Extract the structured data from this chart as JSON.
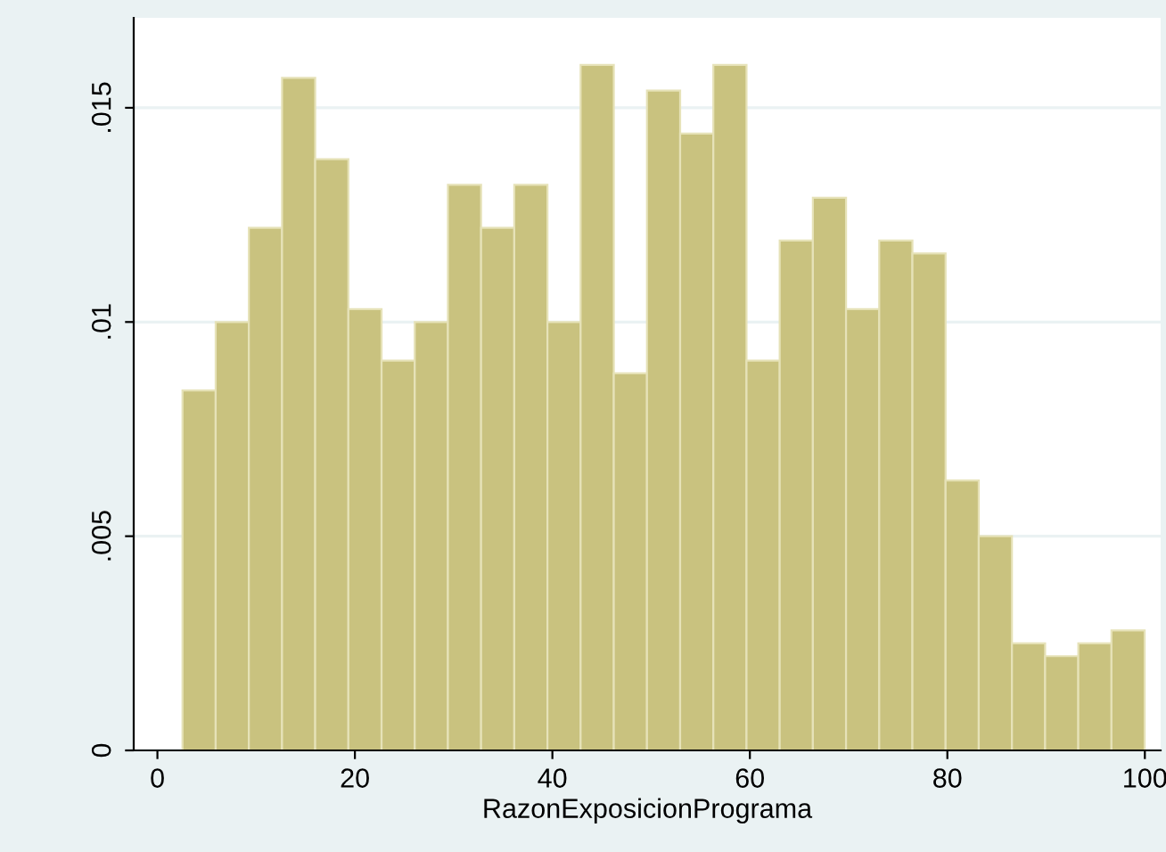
{
  "chart_data": {
    "type": "histogram",
    "xlabel": "RazonExposicionPrograma",
    "bins": [
      2.54,
      5.9,
      9.26,
      12.62,
      15.98,
      19.34,
      22.7,
      26.06,
      29.42,
      32.78,
      36.14,
      39.5,
      42.86,
      46.22,
      49.58,
      52.94,
      56.3,
      59.66,
      63.02,
      66.38,
      69.74,
      73.1,
      76.46,
      79.82,
      83.18,
      86.54,
      89.9,
      93.26,
      96.62,
      99.98
    ],
    "values": [
      0.0084,
      0.01,
      0.0122,
      0.0157,
      0.0138,
      0.0103,
      0.0091,
      0.01,
      0.0132,
      0.0122,
      0.0132,
      0.01,
      0.016,
      0.0088,
      0.0154,
      0.0144,
      0.016,
      0.0091,
      0.0119,
      0.0129,
      0.0103,
      0.0119,
      0.0116,
      0.0063,
      0.005,
      0.0025,
      0.0022,
      0.0025,
      0.0028
    ],
    "color": "#c9c27f",
    "xlim": [
      -2.4,
      101.6
    ],
    "ylim": [
      0,
      0.0171
    ],
    "xticks": [
      0,
      20,
      40,
      60,
      80,
      100
    ],
    "yticks": [
      {
        "value": 0,
        "label": "0"
      },
      {
        "value": 0.005,
        "label": ".005"
      },
      {
        "value": 0.01,
        "label": ".01"
      },
      {
        "value": 0.015,
        "label": ".015"
      }
    ],
    "grid": "y"
  }
}
